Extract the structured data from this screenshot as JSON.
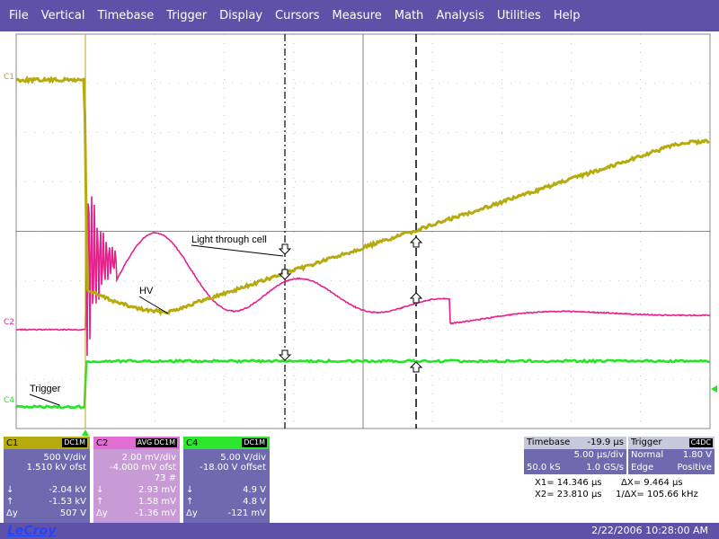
{
  "menu": [
    "File",
    "Vertical",
    "Timebase",
    "Trigger",
    "Display",
    "Cursors",
    "Measure",
    "Math",
    "Analysis",
    "Utilities",
    "Help"
  ],
  "trace_labels": {
    "c1": "C1",
    "c2": "C2",
    "c4": "C4"
  },
  "annotations": {
    "light": "Light through cell",
    "hv": "HV",
    "trigger": "Trigger"
  },
  "colors": {
    "c1": "#b6ab0e",
    "c2": "#e6208c",
    "c4": "#22e622",
    "menubar": "#5f51a8",
    "panel": "#6f6ab0"
  },
  "channels": {
    "c1": {
      "title": "C1",
      "coupling": "DC1M",
      "volts_div": "500 V/div",
      "offset": "1.510 kV ofst",
      "min_label": "↓",
      "min": "-2.04 kV",
      "max_label": "↑",
      "max": "-1.53 kV",
      "dy_label": "Δy",
      "dy": "507 V"
    },
    "c2": {
      "title": "C2",
      "mode": "AVG",
      "coupling": "DC1M",
      "volts_div": "2.00 mV/div",
      "offset": "-4.000 mV ofst",
      "sweeps": "73 #",
      "min_label": "↓",
      "min": "2.93 mV",
      "max_label": "↑",
      "max": "1.58 mV",
      "dy_label": "Δy",
      "dy": "-1.36 mV"
    },
    "c4": {
      "title": "C4",
      "coupling": "DC1M",
      "volts_div": "5.00 V/div",
      "offset": "-18.00 V offset",
      "min_label": "↓",
      "min": "4.9 V",
      "max_label": "↑",
      "max": "4.8 V",
      "dy_label": "Δy",
      "dy": "-121 mV"
    }
  },
  "timebase": {
    "title": "Timebase",
    "delay": "-19.9 µs",
    "per_div": "5.00 µs/div",
    "samples": "50.0 kS",
    "rate": "1.0 GS/s"
  },
  "trigger": {
    "title": "Trigger",
    "source": "C4",
    "coupling": "DC",
    "mode": "Normal",
    "level": "1.80 V",
    "type": "Edge",
    "slope": "Positive"
  },
  "cursors": {
    "x1": "X1= 14.346 µs",
    "dx": "ΔX=   9.464 µs",
    "x2": "X2= 23.810 µs",
    "inv_dx": "1/ΔX= 105.66 kHz"
  },
  "status": {
    "logo": "LeCroy",
    "datetime": "2/22/2006 10:28:00 AM"
  }
}
